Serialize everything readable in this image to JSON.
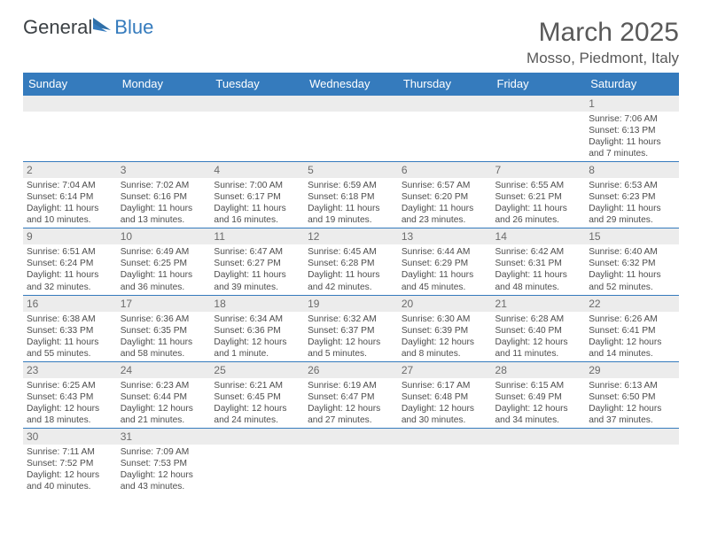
{
  "logo": {
    "textA": "General",
    "textB": "Blue"
  },
  "title": "March 2025",
  "location": "Mosso, Piedmont, Italy",
  "colors": {
    "header_bg": "#357bbd",
    "header_text": "#ffffff",
    "daynum_bg": "#ececec",
    "cell_border": "#357bbd",
    "body_text": "#4d4d4d",
    "title_text": "#595959",
    "page_bg": "#ffffff"
  },
  "typography": {
    "title_fontsize": 30,
    "location_fontsize": 17,
    "dayheader_fontsize": 13,
    "daynum_fontsize": 12,
    "info_fontsize": 10.2,
    "font_family": "Arial"
  },
  "dayHeaders": [
    "Sunday",
    "Monday",
    "Tuesday",
    "Wednesday",
    "Thursday",
    "Friday",
    "Saturday"
  ],
  "weeks": [
    [
      {
        "n": "",
        "sr": "",
        "ss": "",
        "dl": ""
      },
      {
        "n": "",
        "sr": "",
        "ss": "",
        "dl": ""
      },
      {
        "n": "",
        "sr": "",
        "ss": "",
        "dl": ""
      },
      {
        "n": "",
        "sr": "",
        "ss": "",
        "dl": ""
      },
      {
        "n": "",
        "sr": "",
        "ss": "",
        "dl": ""
      },
      {
        "n": "",
        "sr": "",
        "ss": "",
        "dl": ""
      },
      {
        "n": "1",
        "sr": "Sunrise: 7:06 AM",
        "ss": "Sunset: 6:13 PM",
        "dl": "Daylight: 11 hours and 7 minutes."
      }
    ],
    [
      {
        "n": "2",
        "sr": "Sunrise: 7:04 AM",
        "ss": "Sunset: 6:14 PM",
        "dl": "Daylight: 11 hours and 10 minutes."
      },
      {
        "n": "3",
        "sr": "Sunrise: 7:02 AM",
        "ss": "Sunset: 6:16 PM",
        "dl": "Daylight: 11 hours and 13 minutes."
      },
      {
        "n": "4",
        "sr": "Sunrise: 7:00 AM",
        "ss": "Sunset: 6:17 PM",
        "dl": "Daylight: 11 hours and 16 minutes."
      },
      {
        "n": "5",
        "sr": "Sunrise: 6:59 AM",
        "ss": "Sunset: 6:18 PM",
        "dl": "Daylight: 11 hours and 19 minutes."
      },
      {
        "n": "6",
        "sr": "Sunrise: 6:57 AM",
        "ss": "Sunset: 6:20 PM",
        "dl": "Daylight: 11 hours and 23 minutes."
      },
      {
        "n": "7",
        "sr": "Sunrise: 6:55 AM",
        "ss": "Sunset: 6:21 PM",
        "dl": "Daylight: 11 hours and 26 minutes."
      },
      {
        "n": "8",
        "sr": "Sunrise: 6:53 AM",
        "ss": "Sunset: 6:23 PM",
        "dl": "Daylight: 11 hours and 29 minutes."
      }
    ],
    [
      {
        "n": "9",
        "sr": "Sunrise: 6:51 AM",
        "ss": "Sunset: 6:24 PM",
        "dl": "Daylight: 11 hours and 32 minutes."
      },
      {
        "n": "10",
        "sr": "Sunrise: 6:49 AM",
        "ss": "Sunset: 6:25 PM",
        "dl": "Daylight: 11 hours and 36 minutes."
      },
      {
        "n": "11",
        "sr": "Sunrise: 6:47 AM",
        "ss": "Sunset: 6:27 PM",
        "dl": "Daylight: 11 hours and 39 minutes."
      },
      {
        "n": "12",
        "sr": "Sunrise: 6:45 AM",
        "ss": "Sunset: 6:28 PM",
        "dl": "Daylight: 11 hours and 42 minutes."
      },
      {
        "n": "13",
        "sr": "Sunrise: 6:44 AM",
        "ss": "Sunset: 6:29 PM",
        "dl": "Daylight: 11 hours and 45 minutes."
      },
      {
        "n": "14",
        "sr": "Sunrise: 6:42 AM",
        "ss": "Sunset: 6:31 PM",
        "dl": "Daylight: 11 hours and 48 minutes."
      },
      {
        "n": "15",
        "sr": "Sunrise: 6:40 AM",
        "ss": "Sunset: 6:32 PM",
        "dl": "Daylight: 11 hours and 52 minutes."
      }
    ],
    [
      {
        "n": "16",
        "sr": "Sunrise: 6:38 AM",
        "ss": "Sunset: 6:33 PM",
        "dl": "Daylight: 11 hours and 55 minutes."
      },
      {
        "n": "17",
        "sr": "Sunrise: 6:36 AM",
        "ss": "Sunset: 6:35 PM",
        "dl": "Daylight: 11 hours and 58 minutes."
      },
      {
        "n": "18",
        "sr": "Sunrise: 6:34 AM",
        "ss": "Sunset: 6:36 PM",
        "dl": "Daylight: 12 hours and 1 minute."
      },
      {
        "n": "19",
        "sr": "Sunrise: 6:32 AM",
        "ss": "Sunset: 6:37 PM",
        "dl": "Daylight: 12 hours and 5 minutes."
      },
      {
        "n": "20",
        "sr": "Sunrise: 6:30 AM",
        "ss": "Sunset: 6:39 PM",
        "dl": "Daylight: 12 hours and 8 minutes."
      },
      {
        "n": "21",
        "sr": "Sunrise: 6:28 AM",
        "ss": "Sunset: 6:40 PM",
        "dl": "Daylight: 12 hours and 11 minutes."
      },
      {
        "n": "22",
        "sr": "Sunrise: 6:26 AM",
        "ss": "Sunset: 6:41 PM",
        "dl": "Daylight: 12 hours and 14 minutes."
      }
    ],
    [
      {
        "n": "23",
        "sr": "Sunrise: 6:25 AM",
        "ss": "Sunset: 6:43 PM",
        "dl": "Daylight: 12 hours and 18 minutes."
      },
      {
        "n": "24",
        "sr": "Sunrise: 6:23 AM",
        "ss": "Sunset: 6:44 PM",
        "dl": "Daylight: 12 hours and 21 minutes."
      },
      {
        "n": "25",
        "sr": "Sunrise: 6:21 AM",
        "ss": "Sunset: 6:45 PM",
        "dl": "Daylight: 12 hours and 24 minutes."
      },
      {
        "n": "26",
        "sr": "Sunrise: 6:19 AM",
        "ss": "Sunset: 6:47 PM",
        "dl": "Daylight: 12 hours and 27 minutes."
      },
      {
        "n": "27",
        "sr": "Sunrise: 6:17 AM",
        "ss": "Sunset: 6:48 PM",
        "dl": "Daylight: 12 hours and 30 minutes."
      },
      {
        "n": "28",
        "sr": "Sunrise: 6:15 AM",
        "ss": "Sunset: 6:49 PM",
        "dl": "Daylight: 12 hours and 34 minutes."
      },
      {
        "n": "29",
        "sr": "Sunrise: 6:13 AM",
        "ss": "Sunset: 6:50 PM",
        "dl": "Daylight: 12 hours and 37 minutes."
      }
    ],
    [
      {
        "n": "30",
        "sr": "Sunrise: 7:11 AM",
        "ss": "Sunset: 7:52 PM",
        "dl": "Daylight: 12 hours and 40 minutes."
      },
      {
        "n": "31",
        "sr": "Sunrise: 7:09 AM",
        "ss": "Sunset: 7:53 PM",
        "dl": "Daylight: 12 hours and 43 minutes."
      },
      {
        "n": "",
        "sr": "",
        "ss": "",
        "dl": ""
      },
      {
        "n": "",
        "sr": "",
        "ss": "",
        "dl": ""
      },
      {
        "n": "",
        "sr": "",
        "ss": "",
        "dl": ""
      },
      {
        "n": "",
        "sr": "",
        "ss": "",
        "dl": ""
      },
      {
        "n": "",
        "sr": "",
        "ss": "",
        "dl": ""
      }
    ]
  ]
}
